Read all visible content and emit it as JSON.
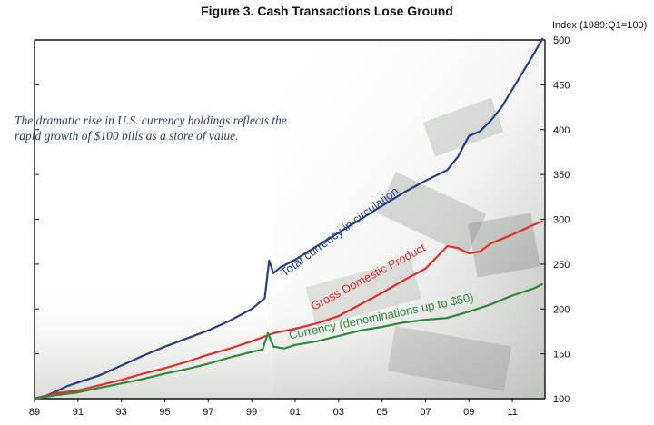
{
  "chart_data": {
    "type": "line",
    "title": "Figure 3. Cash Transactions Lose Ground",
    "y_unit_label": "Index (1989:Q1=100)",
    "annotation": "The dramatic rise in U.S. currency holdings reflects the rapid growth of $100 bills as a store of value.",
    "xlim": [
      1989,
      2012.5
    ],
    "ylim": [
      100,
      500
    ],
    "x_ticks": [
      1989,
      1991,
      1993,
      1995,
      1997,
      1999,
      2001,
      2003,
      2005,
      2007,
      2009,
      2011
    ],
    "x_tick_labels": [
      "89",
      "91",
      "93",
      "95",
      "97",
      "99",
      "01",
      "03",
      "05",
      "07",
      "09",
      "11"
    ],
    "y_ticks": [
      100,
      150,
      200,
      250,
      300,
      350,
      400,
      450,
      500
    ],
    "y_tick_labels": [
      "100",
      "150",
      "200",
      "250",
      "300",
      "350",
      "400",
      "450",
      "500"
    ],
    "grid": false,
    "series": [
      {
        "name": "Total currency in circulation",
        "color": "#2b3f7e",
        "points": [
          [
            1989,
            100
          ],
          [
            1989.5,
            103
          ],
          [
            1990,
            108
          ],
          [
            1990.5,
            114
          ],
          [
            1991,
            118
          ],
          [
            1992,
            126
          ],
          [
            1993,
            137
          ],
          [
            1994,
            148
          ],
          [
            1995,
            158
          ],
          [
            1996,
            167
          ],
          [
            1997,
            176
          ],
          [
            1998,
            187
          ],
          [
            1999,
            200
          ],
          [
            1999.6,
            212
          ],
          [
            1999.8,
            254
          ],
          [
            2000.0,
            240
          ],
          [
            2000.3,
            246
          ],
          [
            2001,
            255
          ],
          [
            2002,
            270
          ],
          [
            2003,
            285
          ],
          [
            2004,
            300
          ],
          [
            2005,
            315
          ],
          [
            2006,
            330
          ],
          [
            2007,
            343
          ],
          [
            2008,
            355
          ],
          [
            2008.5,
            370
          ],
          [
            2009,
            393
          ],
          [
            2009.5,
            398
          ],
          [
            2010,
            410
          ],
          [
            2010.5,
            425
          ],
          [
            2011,
            445
          ],
          [
            2011.5,
            465
          ],
          [
            2012,
            485
          ],
          [
            2012.4,
            502
          ]
        ]
      },
      {
        "name": "Gross Domestic Product",
        "color": "#e32e2e",
        "points": [
          [
            1989,
            100
          ],
          [
            1990,
            106
          ],
          [
            1991,
            109
          ],
          [
            1992,
            115
          ],
          [
            1993,
            121
          ],
          [
            1994,
            128
          ],
          [
            1995,
            134
          ],
          [
            1996,
            141
          ],
          [
            1997,
            149
          ],
          [
            1998,
            156
          ],
          [
            1999,
            164
          ],
          [
            2000,
            173
          ],
          [
            2001,
            178
          ],
          [
            2002,
            184
          ],
          [
            2003,
            192
          ],
          [
            2004,
            205
          ],
          [
            2005,
            218
          ],
          [
            2006,
            232
          ],
          [
            2007,
            245
          ],
          [
            2008,
            270
          ],
          [
            2008.5,
            268
          ],
          [
            2009,
            262
          ],
          [
            2009.5,
            264
          ],
          [
            2010,
            273
          ],
          [
            2011,
            283
          ],
          [
            2012,
            294
          ],
          [
            2012.4,
            298
          ]
        ]
      },
      {
        "name": "Currency (denominations up to $50)",
        "color": "#2e8b3a",
        "points": [
          [
            1989,
            100
          ],
          [
            1990,
            104
          ],
          [
            1991,
            107
          ],
          [
            1992,
            112
          ],
          [
            1993,
            117
          ],
          [
            1994,
            122
          ],
          [
            1995,
            128
          ],
          [
            1996,
            133
          ],
          [
            1997,
            139
          ],
          [
            1998,
            146
          ],
          [
            1999,
            152
          ],
          [
            1999.5,
            155
          ],
          [
            1999.75,
            173
          ],
          [
            2000.0,
            158
          ],
          [
            2000.5,
            156
          ],
          [
            2001,
            160
          ],
          [
            2002,
            164
          ],
          [
            2003,
            170
          ],
          [
            2004,
            176
          ],
          [
            2005,
            180
          ],
          [
            2006,
            185
          ],
          [
            2007,
            188
          ],
          [
            2008,
            190
          ],
          [
            2009,
            197
          ],
          [
            2010,
            205
          ],
          [
            2011,
            215
          ],
          [
            2012,
            223
          ],
          [
            2012.4,
            228
          ]
        ]
      }
    ]
  }
}
